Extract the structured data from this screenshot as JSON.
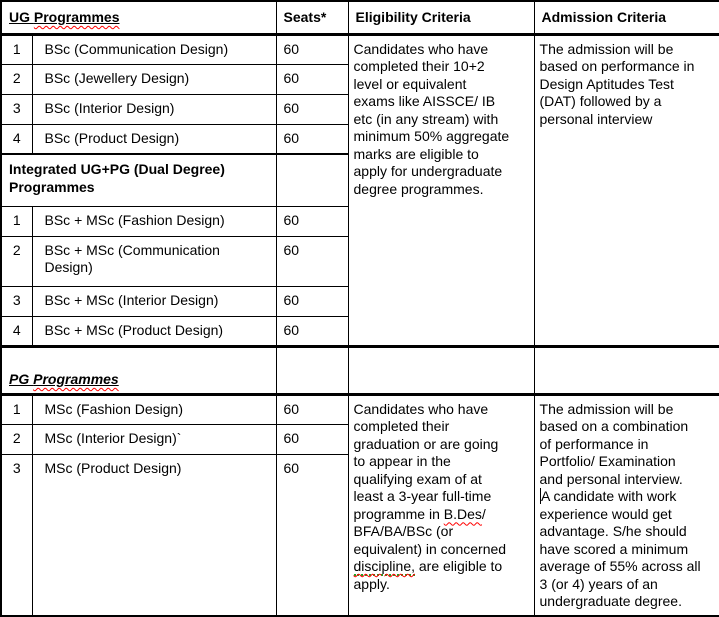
{
  "colors": {
    "border": "#000000",
    "text": "#000000",
    "bg": "#ffffff",
    "spell_red": "#ff0000",
    "grammar_green": "#21a121"
  },
  "header": {
    "ug_title_segments": [
      {
        "t": "UG "
      },
      {
        "t": "Programmes",
        "s": "sp-red",
        "n": "misspell-marked-word"
      }
    ],
    "seats": "Seats*",
    "eligibility": "Eligibility Criteria",
    "admission": "Admission Criteria"
  },
  "ug_rows": [
    {
      "num": "1",
      "programme": "BSc (Communication Design)",
      "seats": "60"
    },
    {
      "num": "2",
      "programme": "BSc (Jewellery Design)",
      "seats": "60"
    },
    {
      "num": "3",
      "programme": "BSc (Interior Design)",
      "seats": "60"
    },
    {
      "num": "4",
      "programme": "BSc (Product Design)",
      "seats": "60"
    }
  ],
  "ug_eligibility_segments": [
    {
      "t": "Candidates who have\ncompleted their 10+2\nlevel or equivalent\nexams like AISSCE/ IB\netc (in any stream) with\nminimum 50% aggregate\nmarks are eligible to\napply for undergraduate\ndegree programmes."
    }
  ],
  "ug_admission_segments": [
    {
      "t": "The admission will be\nbased on performance in\nDesign Aptitudes Test\n(DAT) followed by a\npersonal interview"
    }
  ],
  "integrated": {
    "title": "Integrated UG+PG (Dual Degree)\nProgrammes",
    "rows": [
      {
        "num": "1",
        "programme": "BSc + MSc (Fashion Design)",
        "seats": "60"
      },
      {
        "num": "2",
        "programme": "BSc + MSc (Communication\nDesign)",
        "seats": "60"
      },
      {
        "num": "3",
        "programme": "BSc + MSc (Interior Design)",
        "seats": "60"
      },
      {
        "num": "4",
        "programme": "BSc + MSc (Product Design)",
        "seats": "60"
      }
    ]
  },
  "pg": {
    "title_segments": [
      {
        "t": "PG "
      },
      {
        "t": "Programmes",
        "s": "sp-red",
        "n": "misspell-marked-word"
      }
    ],
    "rows": [
      {
        "num": "1",
        "programme": "MSc (Fashion Design)",
        "seats": "60"
      },
      {
        "num": "2",
        "programme": "MSc (Interior Design)`",
        "seats": "60"
      },
      {
        "num": "3",
        "programme": "MSc (Product Design)",
        "seats": "60"
      }
    ]
  },
  "pg_eligibility_segments": [
    {
      "t": "Candidates who have\ncompleted their\ngraduation or are going\nto appear in the\nqualifying exam of at\nleast a 3-year full-time\nprogramme in "
    },
    {
      "t": "B.Des",
      "s": "sp-red",
      "n": "misspell-marked-word"
    },
    {
      "t": "/\nBFA/BA/BSc (or\nequivalent) in concerned\n"
    },
    {
      "t": "discipline,",
      "s": "sp-redgreen",
      "n": "grammar-marked-word"
    },
    {
      "t": " are eligible to\napply."
    }
  ],
  "pg_admission_segments": [
    {
      "t": "The admission will be\nbased on a combination\nof performance in\nPortfolio/ Examination\nand personal interview.\n"
    },
    {
      "t": "",
      "s": "caret",
      "n": "text-cursor"
    },
    {
      "t": "A candidate with work\nexperience would get\nadvantage. S/he should\nhave scored a minimum\naverage of 55% across all\n3 (or 4) years of an\nundergraduate degree."
    }
  ]
}
